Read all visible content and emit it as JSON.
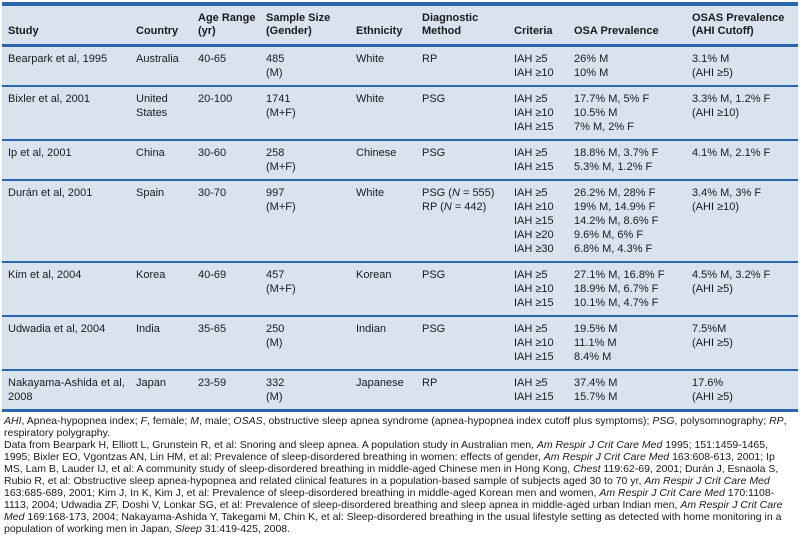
{
  "colors": {
    "row_bg": "#d9e3f0",
    "border_dark": "#2a66ad",
    "text": "#1a1a1a"
  },
  "table": {
    "columns": [
      {
        "label": "Study"
      },
      {
        "label": "Country"
      },
      {
        "label": "Age Range (yr)"
      },
      {
        "label": "Sample Size (Gender)"
      },
      {
        "label": "Ethnicity"
      },
      {
        "label": "Diagnostic Method"
      },
      {
        "label": "Criteria"
      },
      {
        "label": "OSA Prevalence"
      },
      {
        "label": "OSAS Prevalence (AHI Cutoff)"
      }
    ],
    "rows": [
      {
        "study": "Bearpark et al, 1995",
        "country": "Australia",
        "age_range": "40-65",
        "sample_size": [
          "485",
          "(M)"
        ],
        "ethnicity": "White",
        "method": [
          "RP"
        ],
        "criteria": [
          "IAH ≥5",
          "IAH ≥10"
        ],
        "osa_prevalence": [
          "26% M",
          "10% M"
        ],
        "osas_prevalence": [
          "3.1% M",
          "(AHI ≥5)"
        ]
      },
      {
        "study": "Bixler et al, 2001",
        "country": "United States",
        "age_range": "20-100",
        "sample_size": [
          "1741",
          "(M+F)"
        ],
        "ethnicity": "White",
        "method": [
          "PSG"
        ],
        "criteria": [
          "IAH ≥5",
          "IAH ≥10",
          "IAH ≥15"
        ],
        "osa_prevalence": [
          "17.7% M, 5% F",
          "10.5% M",
          "7% M, 2% F"
        ],
        "osas_prevalence": [
          "3.3% M, 1.2% F",
          "(AHI ≥10)"
        ]
      },
      {
        "study": "Ip et al, 2001",
        "country": "China",
        "age_range": "30-60",
        "sample_size": [
          "258",
          "(M+F)"
        ],
        "ethnicity": "Chinese",
        "method": [
          "PSG"
        ],
        "criteria": [
          "IAH ≥5",
          "IAH ≥15"
        ],
        "osa_prevalence": [
          "18.8% M, 3.7% F",
          "5.3% M, 1.2% F"
        ],
        "osas_prevalence": [
          "4.1% M, 2.1% F"
        ]
      },
      {
        "study": "Durán et al, 2001",
        "country": "Spain",
        "age_range": "30-70",
        "sample_size": [
          "997",
          "(M+F)"
        ],
        "ethnicity": "White",
        "method": [
          "PSG (*N* = 555)",
          "RP (*N* = 442)"
        ],
        "criteria": [
          "IAH ≥5",
          "IAH ≥10",
          "IAH ≥15",
          "IAH ≥20",
          "IAH ≥30"
        ],
        "osa_prevalence": [
          "26.2% M, 28% F",
          "19% M, 14.9% F",
          "14.2% M, 8.6% F",
          "9.6% M, 6% F",
          "6.8% M, 4.3% F"
        ],
        "osas_prevalence": [
          "3.4% M, 3% F",
          "(AHI ≥10)"
        ]
      },
      {
        "study": "Kim et al, 2004",
        "country": "Korea",
        "age_range": "40-69",
        "sample_size": [
          "457",
          "(M+F)"
        ],
        "ethnicity": "Korean",
        "method": [
          "PSG"
        ],
        "criteria": [
          "IAH ≥5",
          "IAH ≥10",
          "IAH ≥15"
        ],
        "osa_prevalence": [
          "27.1% M, 16.8% F",
          "18.9% M, 6.7% F",
          "10.1% M, 4.7% F"
        ],
        "osas_prevalence": [
          "4.5% M, 3.2% F",
          "(AHI ≥5)"
        ]
      },
      {
        "study": "Udwadia et al, 2004",
        "country": "India",
        "age_range": "35-65",
        "sample_size": [
          "250",
          "(M)"
        ],
        "ethnicity": "Indian",
        "method": [
          "PSG"
        ],
        "criteria": [
          "IAH ≥5",
          "IAH ≥10",
          "IAH ≥15"
        ],
        "osa_prevalence": [
          "19.5% M",
          "11.1% M",
          "8.4% M"
        ],
        "osas_prevalence": [
          "7.5%M",
          "(AHI ≥5)"
        ]
      },
      {
        "study": "Nakayama-Ashida et al, 2008",
        "country": "Japan",
        "age_range": "23-59",
        "sample_size": [
          "332",
          "(M)"
        ],
        "ethnicity": "Japanese",
        "method": [
          "RP"
        ],
        "criteria": [
          "IAH ≥5",
          "IAH ≥15"
        ],
        "osa_prevalence": [
          "37.4% M",
          "15.7% M"
        ],
        "osas_prevalence": [
          "17.6%",
          "(AHI ≥5)"
        ]
      }
    ]
  },
  "footnotes": {
    "abbreviations": "*AHI*, Apnea-hypopnea index; *F*, female; *M*, male; *OSAS*, obstructive sleep apnea syndrome (apnea-hypopnea index cutoff plus symptoms); *PSG*, polysomnography; *RP*, respiratory polygraphy.",
    "citation": "Data from Bearpark H, Elliott L, Grunstein R, et al: Snoring and sleep apnea. A population study in Australian men, *Am Respir J Crit Care Med* 1995; 151:1459-1465, 1995; Bixler EO, Vgontzas AN, Lin HM, et al: Prevalence of sleep-disordered breathing in women: effects of gender, *Am Respir J Crit Care Med* 163:608-613, 2001; Ip MS, Lam B, Lauder IJ, et al: A community study of sleep-disordered breathing in middle-aged Chinese men in Hong Kong, *Chest* 119:62-69, 2001; Durán J, Esnaola S, Rubio R, et al: Obstructive sleep apnea-hypopnea and related clinical features in a population-based sample of subjects aged 30 to 70 yr, *Am Respir J Crit Care Med* 163:685-689, 2001; Kim J, In K, Kim J, et al: Prevalence of sleep-disordered breathing in middle-aged Korean men and women, *Am Respir J Crit Care Med* 170:1108-1113, 2004; Udwadia ZF, Doshi V, Lonkar SG, et al: Prevalence of sleep-disordered breathing and sleep apnea in middle-aged urban Indian men, *Am Respir J Crit Care Med* 169:168-173, 2004; Nakayama-Ashida Y, Takegami M, Chin K, et al: Sleep-disordered breathing in the usual lifestyle setting as detected with home monitoring in a population of working men in Japan, *Sleep* 31:419-425, 2008."
  }
}
